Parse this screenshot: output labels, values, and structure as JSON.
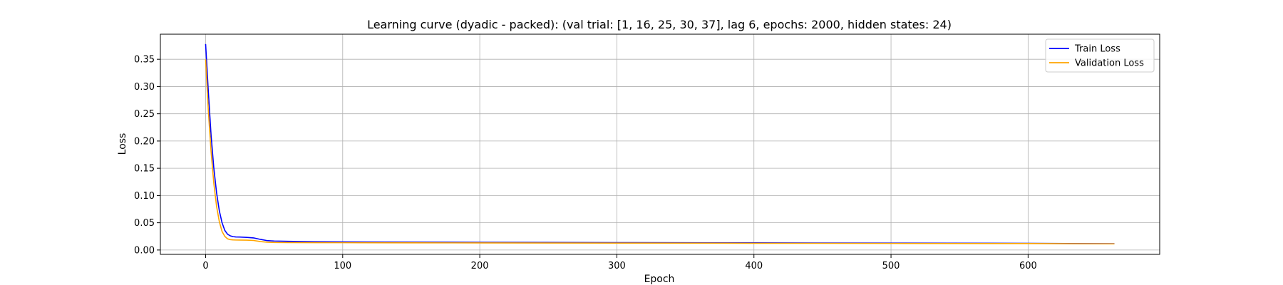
{
  "chart_data": {
    "type": "line",
    "title": "Learning curve (dyadic - packed): (val trial: [1, 16, 25, 30, 37], lag 6, epochs: 2000, hidden states: 24)",
    "xlabel": "Epoch",
    "ylabel": "Loss",
    "xlim": [
      -33,
      696
    ],
    "ylim": [
      -0.008,
      0.396
    ],
    "x_ticks": [
      0,
      100,
      200,
      300,
      400,
      500,
      600
    ],
    "x_tick_labels": [
      "0",
      "100",
      "200",
      "300",
      "400",
      "500",
      "600"
    ],
    "y_ticks": [
      0.0,
      0.05,
      0.1,
      0.15,
      0.2,
      0.25,
      0.3,
      0.35
    ],
    "y_tick_labels": [
      "0.00",
      "0.05",
      "0.10",
      "0.15",
      "0.20",
      "0.25",
      "0.30",
      "0.35"
    ],
    "grid": true,
    "legend_position": "top-right",
    "series": [
      {
        "name": "Train Loss",
        "color": "#0000ff",
        "x": [
          0,
          2,
          4,
          6,
          8,
          10,
          12,
          14,
          16,
          18,
          20,
          22,
          25,
          30,
          35,
          40,
          45,
          50,
          60,
          80,
          100,
          150,
          200,
          300,
          400,
          500,
          600,
          663
        ],
        "y": [
          0.378,
          0.29,
          0.21,
          0.15,
          0.105,
          0.072,
          0.05,
          0.036,
          0.029,
          0.026,
          0.0245,
          0.024,
          0.0238,
          0.0232,
          0.0222,
          0.0195,
          0.0172,
          0.0165,
          0.016,
          0.0152,
          0.0148,
          0.0143,
          0.014,
          0.0135,
          0.0131,
          0.0127,
          0.0122,
          0.0115
        ]
      },
      {
        "name": "Validation Loss",
        "color": "#ffa500",
        "x": [
          0,
          2,
          4,
          6,
          8,
          10,
          12,
          14,
          16,
          18,
          20,
          22,
          25,
          30,
          35,
          40,
          45,
          50,
          60,
          80,
          100,
          150,
          200,
          300,
          400,
          500,
          600,
          663
        ],
        "y": [
          0.35,
          0.255,
          0.18,
          0.122,
          0.08,
          0.052,
          0.034,
          0.025,
          0.0205,
          0.019,
          0.0185,
          0.0183,
          0.0182,
          0.018,
          0.0175,
          0.0155,
          0.0143,
          0.0138,
          0.0137,
          0.0135,
          0.0134,
          0.0132,
          0.013,
          0.0127,
          0.0124,
          0.0121,
          0.0118,
          0.0113
        ]
      }
    ]
  },
  "colors": {
    "grid": "#b0b0b0",
    "axes": "#000000",
    "legend_border": "#cccccc"
  }
}
